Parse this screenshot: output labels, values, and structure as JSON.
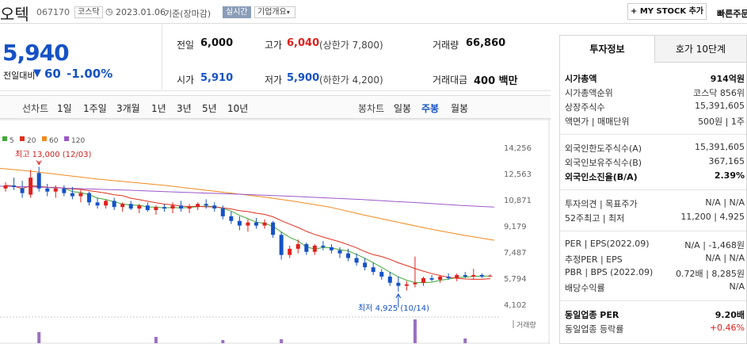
{
  "header": {
    "name": "오텍",
    "code": "067170",
    "market": "코스닥",
    "date": "2023.01.06",
    "basis": "기준(장마감)",
    "realtime": "실시간",
    "overview": "기업개요",
    "mystock": "+ MY STOCK 추가",
    "fast": "빠른주문"
  },
  "price": {
    "current": "5,940",
    "diff_label": "전일대비",
    "diff": "60",
    "rate": "-1.00%"
  },
  "summary": {
    "prev_label": "전일",
    "prev": "6,000",
    "high_label": "고가",
    "high": "6,040",
    "upper": "(상한가 7,800)",
    "volume_label": "거래량",
    "volume": "66,860",
    "open_label": "시가",
    "open": "5,910",
    "low_label": "저가",
    "low": "5,900",
    "lower": "(하한가 4,200)",
    "amount_label": "거래대금",
    "amount": "400 백만"
  },
  "period": {
    "label": "선차트",
    "items": [
      "1일",
      "1주일",
      "3개월",
      "1년",
      "3년",
      "5년",
      "10년"
    ],
    "candle_label": "봉차트",
    "candle_items": [
      "일봉",
      "주봉",
      "월봉"
    ],
    "active_candle": "주봉"
  },
  "legend": [
    {
      "name": "5",
      "color": "#43a838"
    },
    {
      "name": "20",
      "color": "#e0301e"
    },
    {
      "name": "60",
      "color": "#f08a1e"
    },
    {
      "name": "120",
      "color": "#9b59c9"
    }
  ],
  "chart_labels": {
    "yticks": [
      "14,256",
      "12,563",
      "10,871",
      "9,179",
      "7,487",
      "5,794",
      "4,102"
    ],
    "max_note": "최고 13,000 (12/03)",
    "min_note": "최저 4,925 (10/14)",
    "volume_label": "거래량"
  },
  "side": {
    "tab1": "투자정보",
    "tab2": "호가 10단계",
    "rows": [
      {
        "l": "시가총액",
        "r": "914억원",
        "bold": true
      },
      {
        "l": "시가총액순위",
        "r": "코스닥 856위"
      },
      {
        "l": "상장주식수",
        "r": "15,391,605"
      },
      {
        "l": "액면가 | 매매단위",
        "r": "500원 | 1주"
      },
      {
        "l": "외국인한도주식수(A)",
        "r": "15,391,605"
      },
      {
        "l": "외국인보유주식수(B)",
        "r": "367,165"
      },
      {
        "l": "외국인소진율(B/A)",
        "r": "2.39%",
        "bold": true
      },
      {
        "l": "투자의견 | 목표주가",
        "r": "N/A | N/A"
      },
      {
        "l": "52주최고 | 최저",
        "r": "11,200 | 4,925"
      },
      {
        "l": "PER | EPS(2022.09)",
        "r": "N/A | -1,468원"
      },
      {
        "l": "추정PER | EPS",
        "r": "N/A | N/A"
      },
      {
        "l": "PBR | BPS (2022.09)",
        "r": "0.72배 | 8,285원"
      },
      {
        "l": "배당수익률",
        "r": "N/A"
      },
      {
        "l": "동일업종 PER",
        "r": "9.20배",
        "bold": true
      },
      {
        "l": "동일업종 등락률",
        "r": "+0.46%"
      }
    ]
  },
  "colors": {
    "up": "#e0211d",
    "down": "#1552c6"
  },
  "chart_data": {
    "type": "candlestick",
    "yticks": [
      14256,
      12563,
      10871,
      9179,
      7487,
      5794,
      4102
    ],
    "ylim": [
      4102,
      14256
    ],
    "candles": [
      [
        11600,
        12000,
        11400,
        11800
      ],
      [
        11800,
        12300,
        11500,
        11700
      ],
      [
        11600,
        12100,
        11000,
        11300
      ],
      [
        11200,
        12800,
        11000,
        12300
      ],
      [
        12600,
        13000,
        11400,
        11600
      ],
      [
        11600,
        11900,
        11100,
        11400
      ],
      [
        11400,
        11800,
        11000,
        11600
      ],
      [
        11600,
        11800,
        11100,
        11300
      ],
      [
        11300,
        11700,
        10900,
        11100
      ],
      [
        11100,
        11500,
        10700,
        11300
      ],
      [
        11300,
        11400,
        10500,
        10700
      ],
      [
        10700,
        11000,
        10300,
        10500
      ],
      [
        10500,
        10900,
        10300,
        10800
      ],
      [
        10800,
        11000,
        10200,
        10400
      ],
      [
        10400,
        10700,
        10100,
        10600
      ],
      [
        10600,
        10800,
        10200,
        10300
      ],
      [
        10300,
        10600,
        10000,
        10500
      ],
      [
        10500,
        10700,
        10100,
        10200
      ],
      [
        10200,
        10500,
        9900,
        10400
      ],
      [
        10400,
        10600,
        10100,
        10300
      ],
      [
        10300,
        10700,
        10000,
        10500
      ],
      [
        10500,
        10800,
        10100,
        10300
      ],
      [
        10300,
        10600,
        10000,
        10400
      ],
      [
        10400,
        10700,
        10200,
        10600
      ],
      [
        10600,
        10900,
        10300,
        10500
      ],
      [
        10500,
        10700,
        10100,
        10300
      ],
      [
        10300,
        10500,
        9600,
        9800
      ],
      [
        9800,
        10100,
        9300,
        9500
      ],
      [
        9500,
        9800,
        8900,
        9200
      ],
      [
        9200,
        9600,
        8800,
        9400
      ],
      [
        9400,
        9700,
        9000,
        9200
      ],
      [
        9200,
        9600,
        9000,
        9400
      ],
      [
        9400,
        9500,
        8400,
        8600
      ],
      [
        8600,
        8800,
        7000,
        7300
      ],
      [
        7300,
        7900,
        7100,
        7700
      ],
      [
        7700,
        8300,
        7400,
        8000
      ],
      [
        8000,
        8100,
        7300,
        7500
      ],
      [
        7500,
        8000,
        7300,
        7900
      ],
      [
        7900,
        8200,
        7600,
        7800
      ],
      [
        7800,
        8000,
        7400,
        7600
      ],
      [
        7600,
        7800,
        7100,
        7400
      ],
      [
        7400,
        7700,
        6900,
        7100
      ],
      [
        7100,
        7400,
        6600,
        6800
      ],
      [
        6800,
        7100,
        6300,
        6500
      ],
      [
        6500,
        6800,
        6000,
        6200
      ],
      [
        6200,
        6400,
        5700,
        5900
      ],
      [
        5900,
        6200,
        5300,
        5500
      ],
      [
        5500,
        5900,
        4925,
        5300
      ],
      [
        5300,
        5600,
        5000,
        5400
      ],
      [
        5400,
        7200,
        5200,
        5500
      ],
      [
        5500,
        5900,
        5300,
        5800
      ],
      [
        5800,
        6000,
        5600,
        5700
      ],
      [
        5700,
        6000,
        5500,
        5900
      ],
      [
        5900,
        6100,
        5700,
        5800
      ],
      [
        5800,
        6100,
        5600,
        6000
      ],
      [
        6000,
        6200,
        5800,
        5900
      ],
      [
        5900,
        6400,
        5700,
        6000
      ],
      [
        6000,
        6100,
        5800,
        5900
      ],
      [
        5910,
        6040,
        5900,
        5940
      ]
    ]
  }
}
